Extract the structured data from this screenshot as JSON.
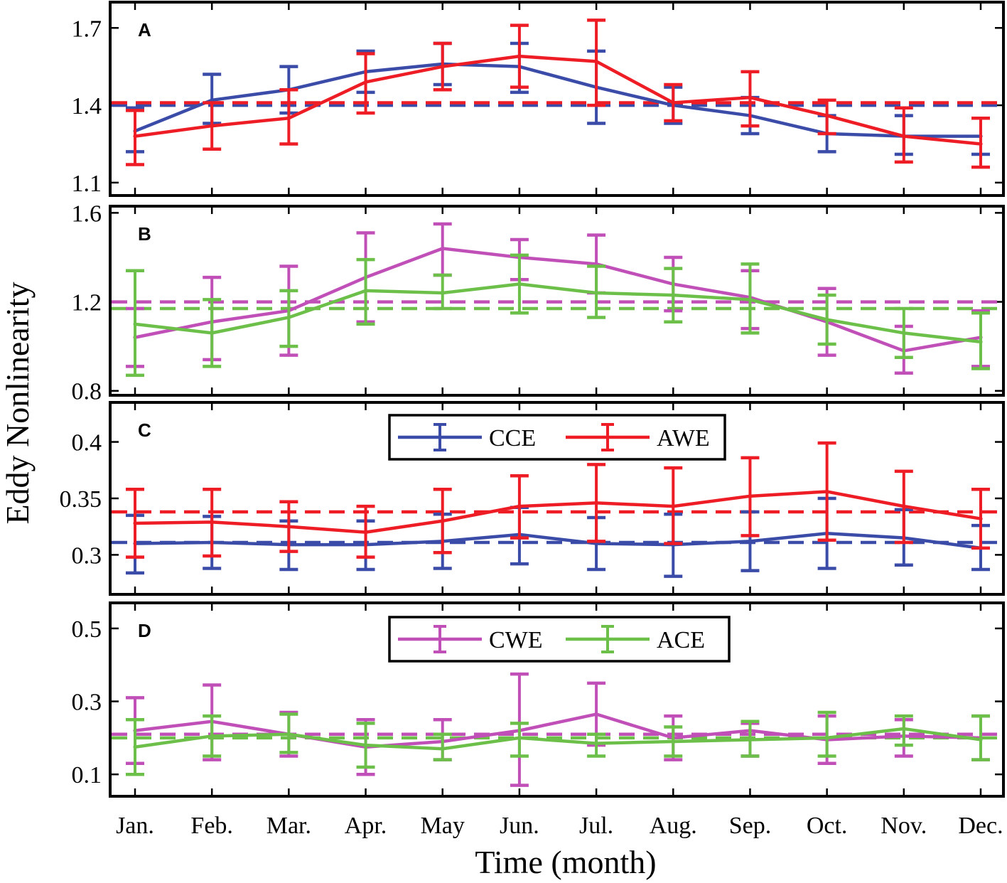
{
  "chart_data": {
    "type": "line",
    "ylabel": "Eddy Nonlinearity",
    "xlabel": "Time (month)",
    "categories": [
      "Jan.",
      "Feb.",
      "Mar.",
      "Apr.",
      "May",
      "Jun.",
      "Jul.",
      "Aug.",
      "Sep.",
      "Oct.",
      "Nov.",
      "Dec."
    ],
    "colors": {
      "CCE": "#3b4ba8",
      "AWE": "#ee1d25",
      "CWE": "#c050b8",
      "ACE": "#6cc04a"
    },
    "panels": [
      {
        "label": "A",
        "ylim": [
          1.05,
          1.8
        ],
        "yticks": [
          1.1,
          1.4,
          1.7
        ],
        "ytick_labels": [
          "1.1",
          "1.4",
          "1.7"
        ],
        "legend": null,
        "series": [
          {
            "name": "CCE",
            "mean_line": 1.4,
            "values": [
              1.3,
              1.42,
              1.46,
              1.53,
              1.56,
              1.55,
              1.47,
              1.4,
              1.36,
              1.29,
              1.28,
              1.28
            ],
            "lower": [
              1.22,
              1.33,
              1.37,
              1.45,
              1.48,
              1.45,
              1.33,
              1.33,
              1.29,
              1.22,
              1.21,
              1.21
            ],
            "upper": [
              1.39,
              1.52,
              1.55,
              1.61,
              1.64,
              1.64,
              1.61,
              1.47,
              1.43,
              1.36,
              1.36,
              1.35
            ]
          },
          {
            "name": "AWE",
            "mean_line": 1.41,
            "values": [
              1.28,
              1.32,
              1.35,
              1.49,
              1.55,
              1.59,
              1.57,
              1.41,
              1.43,
              1.36,
              1.28,
              1.25
            ],
            "lower": [
              1.17,
              1.23,
              1.25,
              1.37,
              1.46,
              1.47,
              1.4,
              1.34,
              1.32,
              1.29,
              1.18,
              1.16
            ],
            "upper": [
              1.38,
              1.41,
              1.46,
              1.6,
              1.64,
              1.71,
              1.73,
              1.48,
              1.53,
              1.42,
              1.39,
              1.35
            ]
          }
        ]
      },
      {
        "label": "B",
        "ylim": [
          0.78,
          1.63
        ],
        "yticks": [
          0.8,
          1.2,
          1.6
        ],
        "ytick_labels": [
          "0.8",
          "1.2",
          "1.6"
        ],
        "legend": null,
        "series": [
          {
            "name": "CWE",
            "mean_line": 1.2,
            "values": [
              1.04,
              1.11,
              1.16,
              1.31,
              1.44,
              1.4,
              1.37,
              1.28,
              1.22,
              1.11,
              0.98,
              1.04
            ],
            "lower": [
              0.91,
              0.94,
              0.96,
              1.11,
              1.32,
              1.3,
              1.24,
              1.16,
              1.08,
              0.96,
              0.88,
              0.91
            ],
            "upper": [
              1.17,
              1.31,
              1.36,
              1.51,
              1.55,
              1.48,
              1.5,
              1.4,
              1.34,
              1.26,
              1.09,
              1.16
            ]
          },
          {
            "name": "ACE",
            "mean_line": 1.17,
            "values": [
              1.1,
              1.06,
              1.13,
              1.25,
              1.24,
              1.28,
              1.24,
              1.23,
              1.21,
              1.12,
              1.06,
              1.02
            ],
            "lower": [
              0.87,
              0.91,
              1.0,
              1.1,
              1.17,
              1.15,
              1.13,
              1.11,
              1.06,
              1.01,
              0.95,
              0.9
            ],
            "upper": [
              1.34,
              1.21,
              1.25,
              1.39,
              1.32,
              1.41,
              1.36,
              1.35,
              1.37,
              1.23,
              1.17,
              1.15
            ]
          }
        ]
      },
      {
        "label": "C",
        "ylim": [
          0.265,
          0.435
        ],
        "yticks": [
          0.3,
          0.35,
          0.4
        ],
        "ytick_labels": [
          "0.3",
          "0.35",
          "0.4"
        ],
        "legend": [
          "CCE",
          "AWE"
        ],
        "series": [
          {
            "name": "CCE",
            "mean_line": 0.311,
            "values": [
              0.31,
              0.311,
              0.309,
              0.309,
              0.312,
              0.318,
              0.31,
              0.309,
              0.312,
              0.319,
              0.315,
              0.306
            ],
            "lower": [
              0.284,
              0.288,
              0.287,
              0.287,
              0.288,
              0.292,
              0.287,
              0.281,
              0.286,
              0.288,
              0.291,
              0.287
            ],
            "upper": [
              0.335,
              0.334,
              0.33,
              0.33,
              0.336,
              0.342,
              0.333,
              0.336,
              0.338,
              0.35,
              0.34,
              0.326
            ]
          },
          {
            "name": "AWE",
            "mean_line": 0.338,
            "values": [
              0.328,
              0.329,
              0.325,
              0.32,
              0.33,
              0.343,
              0.346,
              0.343,
              0.352,
              0.356,
              0.343,
              0.332
            ],
            "lower": [
              0.298,
              0.299,
              0.303,
              0.298,
              0.302,
              0.315,
              0.312,
              0.31,
              0.317,
              0.313,
              0.311,
              0.306
            ],
            "upper": [
              0.358,
              0.358,
              0.347,
              0.343,
              0.358,
              0.37,
              0.38,
              0.377,
              0.386,
              0.399,
              0.374,
              0.358
            ]
          }
        ]
      },
      {
        "label": "D",
        "ylim": [
          0.04,
          0.57
        ],
        "yticks": [
          0.1,
          0.3,
          0.5
        ],
        "ytick_labels": [
          "0.1",
          "0.3",
          "0.5"
        ],
        "legend": [
          "CWE",
          "ACE"
        ],
        "series": [
          {
            "name": "CWE",
            "mean_line": 0.21,
            "values": [
              0.22,
              0.245,
              0.21,
              0.175,
              0.19,
              0.22,
              0.265,
              0.2,
              0.22,
              0.195,
              0.205,
              0.2
            ],
            "lower": [
              0.13,
              0.14,
              0.15,
              0.1,
              0.14,
              0.07,
              0.18,
              0.14,
              0.15,
              0.13,
              0.15,
              0.14
            ],
            "upper": [
              0.31,
              0.345,
              0.27,
              0.25,
              0.25,
              0.375,
              0.35,
              0.26,
              0.24,
              0.26,
              0.25,
              0.26
            ]
          },
          {
            "name": "ACE",
            "mean_line": 0.2,
            "values": [
              0.175,
              0.205,
              0.21,
              0.18,
              0.17,
              0.2,
              0.185,
              0.19,
              0.195,
              0.2,
              0.225,
              0.195
            ],
            "lower": [
              0.1,
              0.15,
              0.16,
              0.12,
              0.14,
              0.15,
              0.15,
              0.15,
              0.15,
              0.15,
              0.18,
              0.14
            ],
            "upper": [
              0.25,
              0.26,
              0.265,
              0.24,
              0.21,
              0.24,
              0.21,
              0.23,
              0.245,
              0.27,
              0.26,
              0.26
            ]
          }
        ]
      }
    ]
  }
}
